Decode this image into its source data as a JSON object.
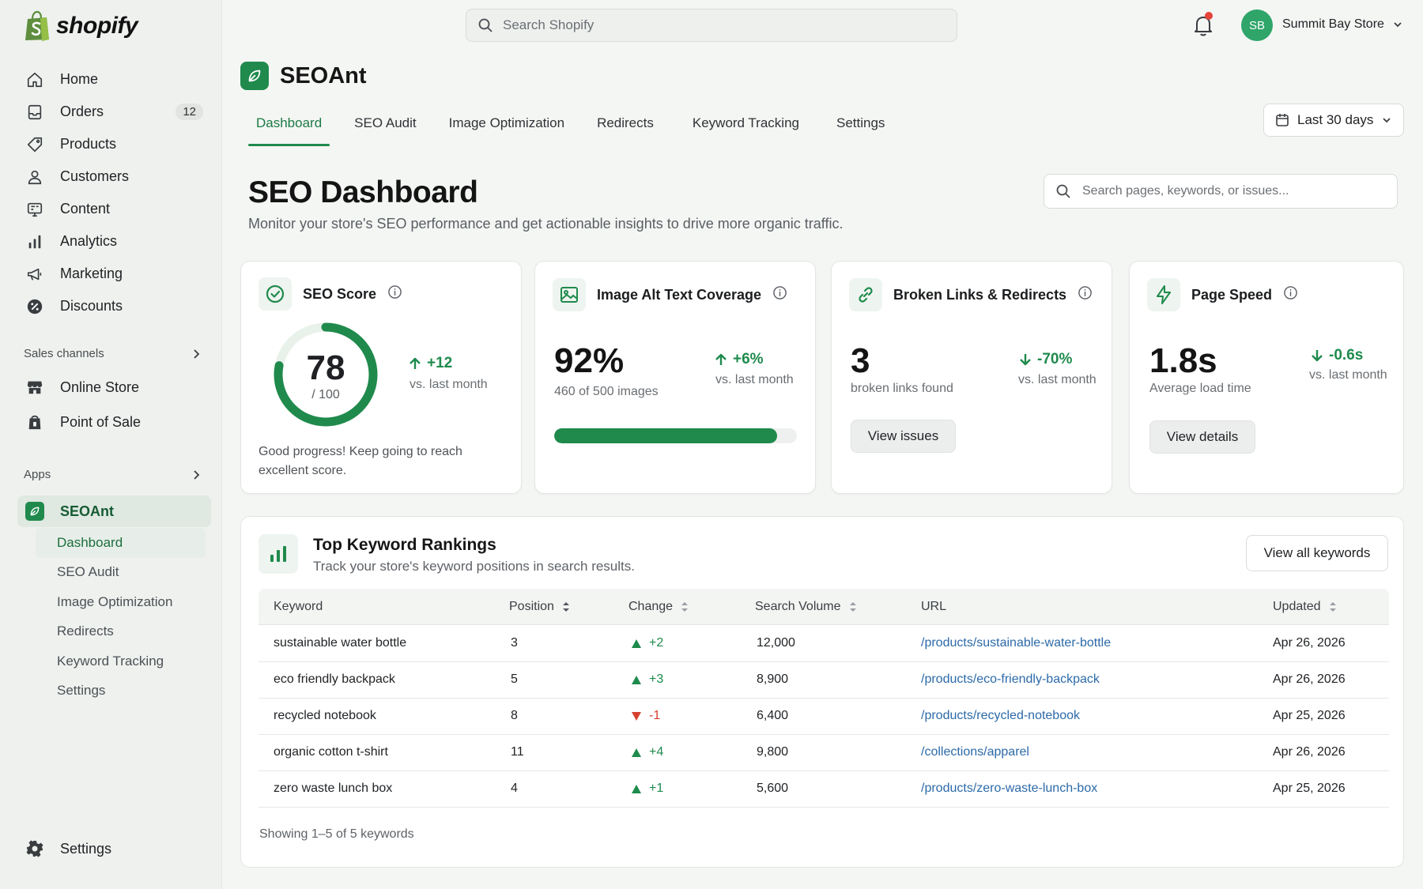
{
  "brand": {
    "name": "shopify"
  },
  "sidebar": {
    "items": [
      {
        "label": "Home",
        "icon": "home-icon"
      },
      {
        "label": "Orders",
        "icon": "orders-icon",
        "badge": "12"
      },
      {
        "label": "Products",
        "icon": "tag-icon"
      },
      {
        "label": "Customers",
        "icon": "person-icon"
      },
      {
        "label": "Content",
        "icon": "content-icon"
      },
      {
        "label": "Analytics",
        "icon": "bar-chart-icon"
      },
      {
        "label": "Marketing",
        "icon": "megaphone-icon"
      },
      {
        "label": "Discounts",
        "icon": "discount-icon"
      }
    ],
    "sales_channels_label": "Sales channels",
    "channels": [
      {
        "label": "Online Store",
        "icon": "store-icon"
      },
      {
        "label": "Point of Sale",
        "icon": "pos-icon"
      }
    ],
    "apps_label": "Apps",
    "app": {
      "label": "SEOAnt"
    },
    "subitems": [
      "Dashboard",
      "SEO Audit",
      "Image Optimization",
      "Redirects",
      "Keyword Tracking",
      "Settings"
    ],
    "settings_label": "Settings"
  },
  "topbar": {
    "search_placeholder": "Search Shopify",
    "avatar_initials": "SB",
    "store_name": "Summit Bay Store"
  },
  "app": {
    "title": "SEOAnt",
    "tabs": [
      "Dashboard",
      "SEO Audit",
      "Image Optimization",
      "Redirects",
      "Keyword Tracking",
      "Settings"
    ],
    "date_range": "Last 30 days"
  },
  "page": {
    "title": "SEO Dashboard",
    "subtitle": "Monitor your store's SEO performance and get actionable insights to drive more organic traffic.",
    "search_placeholder": "Search pages, keywords, or issues..."
  },
  "cards": {
    "seo_score": {
      "title": "SEO Score",
      "value": "78",
      "max": "/ 100",
      "score_fraction": 0.78,
      "delta": "+12",
      "delta_note": "vs. last month",
      "note": "Good progress! Keep going to reach excellent score."
    },
    "alt_text": {
      "title": "Image Alt Text Coverage",
      "value": "92%",
      "sub": "460 of 500 images",
      "delta": "+6%",
      "delta_note": "vs. last month",
      "progress_percent": 92
    },
    "broken_links": {
      "title": "Broken Links & Redirects",
      "value": "3",
      "sub": "broken links found",
      "delta": "-70%",
      "delta_note": "vs. last month",
      "button": "View issues"
    },
    "page_speed": {
      "title": "Page Speed",
      "value": "1.8s",
      "sub": "Average load time",
      "delta": "-0.6s",
      "delta_note": "vs. last month",
      "button": "View details"
    }
  },
  "keywords": {
    "title": "Top Keyword Rankings",
    "subtitle": "Track your store's keyword positions in search results.",
    "view_all": "View all keywords",
    "columns": [
      "Keyword",
      "Position",
      "Change",
      "Search Volume",
      "URL",
      "Updated"
    ],
    "rows": [
      {
        "keyword": "sustainable water bottle",
        "position": "3",
        "change": "+2",
        "dir": "up",
        "volume": "12,000",
        "url": "/products/sustainable-water-bottle",
        "updated": "Apr 26, 2026"
      },
      {
        "keyword": "eco friendly backpack",
        "position": "5",
        "change": "+3",
        "dir": "up",
        "volume": "8,900",
        "url": "/products/eco-friendly-backpack",
        "updated": "Apr 26, 2026"
      },
      {
        "keyword": "recycled notebook",
        "position": "8",
        "change": "-1",
        "dir": "down",
        "volume": "6,400",
        "url": "/products/recycled-notebook",
        "updated": "Apr 25, 2026"
      },
      {
        "keyword": "organic cotton t-shirt",
        "position": "11",
        "change": "+4",
        "dir": "up",
        "volume": "9,800",
        "url": "/collections/apparel",
        "updated": "Apr 26, 2026"
      },
      {
        "keyword": "zero waste lunch box",
        "position": "4",
        "change": "+1",
        "dir": "up",
        "volume": "5,600",
        "url": "/products/zero-waste-lunch-box",
        "updated": "Apr 25, 2026"
      }
    ],
    "footer": "Showing 1–5 of 5 keywords"
  },
  "colors": {
    "accent": "#1f8a4c",
    "link": "#2c6aa8",
    "negative": "#d6402f",
    "notification": "#e5443a"
  }
}
